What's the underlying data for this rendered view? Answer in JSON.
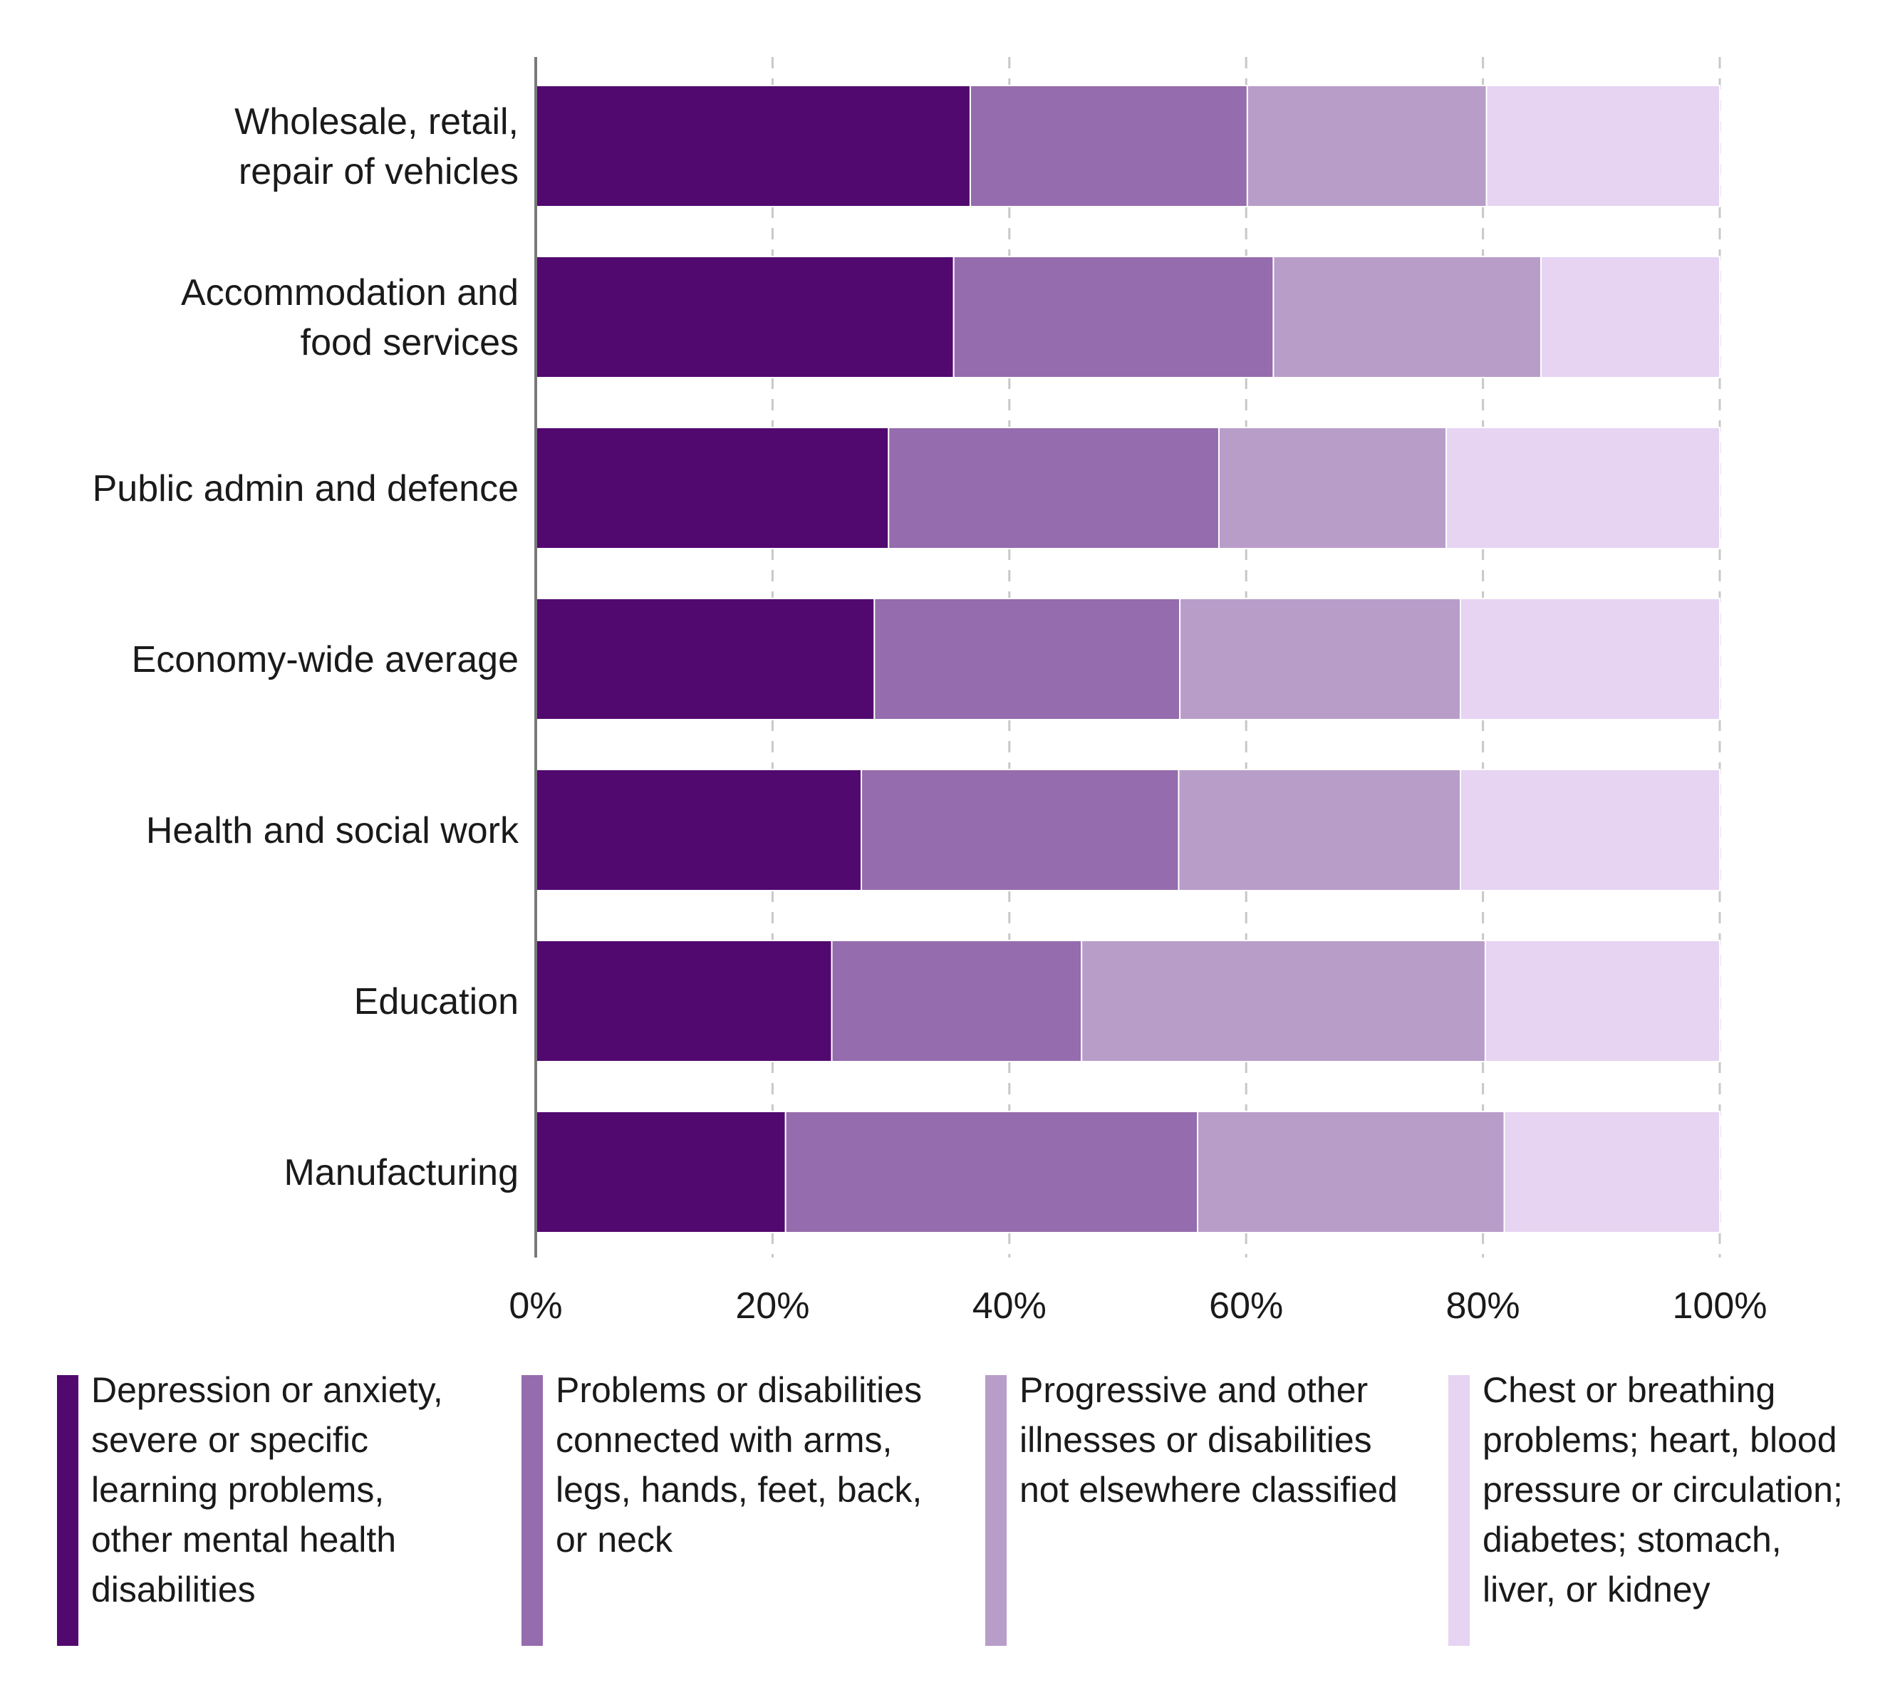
{
  "chart_data": {
    "type": "bar",
    "orientation": "horizontal",
    "stacked": true,
    "categories": [
      "Wholesale, retail,\nrepair of vehicles",
      "Accommodation and\nfood services",
      "Public admin and defence",
      "Economy-wide average",
      "Health and social work",
      "Education",
      "Manufacturing"
    ],
    "series": [
      {
        "name": "Depression or anxiety,\nsevere or specific\nlearning problems,\nother mental health\ndisabilities",
        "color": "#52096f",
        "values": [
          36.7,
          35.3,
          29.8,
          28.6,
          27.5,
          25.0,
          21.1
        ]
      },
      {
        "name": "Problems or disabilities\nconnected with arms,\nlegs, hands, feet, back,\nor neck",
        "color": "#956cad",
        "values": [
          23.4,
          27.0,
          27.9,
          25.8,
          26.8,
          21.1,
          34.8
        ]
      },
      {
        "name": "Progressive and other\nillnesses or disabilities\nnot elsewhere classified",
        "color": "#b89dc9",
        "values": [
          20.2,
          22.6,
          19.2,
          23.7,
          23.8,
          34.1,
          25.9
        ]
      },
      {
        "name": "Chest or breathing\nproblems; heart, blood\npressure or circulation;\ndiabetes; stomach,\nliver, or kidney",
        "color": "#e6d4f2",
        "values": [
          19.7,
          15.1,
          23.1,
          21.9,
          21.9,
          19.8,
          18.2
        ]
      }
    ],
    "xlim": [
      0,
      100
    ],
    "xticks": [
      "0%",
      "20%",
      "40%",
      "60%",
      "80%",
      "100%"
    ],
    "grid": "vertical dashed",
    "legend": "bottom"
  }
}
